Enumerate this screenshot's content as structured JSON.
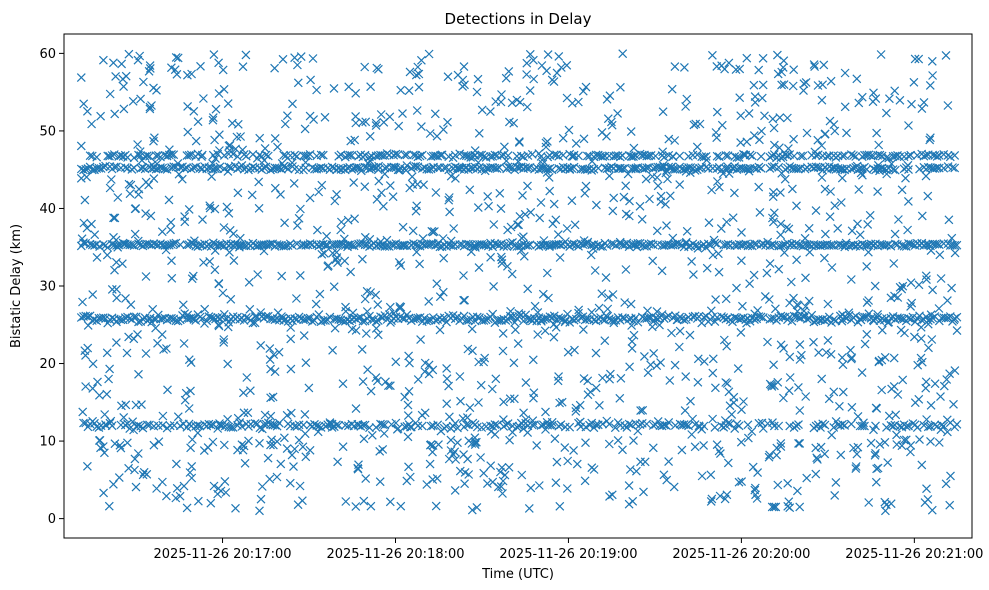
{
  "chart_data": {
    "type": "scatter",
    "title": "Detections in Delay",
    "xlabel": "Time (UTC)",
    "ylabel": "Bistatic Delay (km)",
    "marker": "x",
    "color": "#1f77b4",
    "grid": false,
    "legend": "none",
    "xlim": [
      "2025-11-26 20:16:05",
      "2025-11-26 20:21:20"
    ],
    "ylim": [
      -2.5,
      62.5
    ],
    "x_ticks": [
      {
        "value": "2025-11-26 20:17:00",
        "label": "2025-11-26 20:17:00"
      },
      {
        "value": "2025-11-26 20:18:00",
        "label": "2025-11-26 20:18:00"
      },
      {
        "value": "2025-11-26 20:19:00",
        "label": "2025-11-26 20:19:00"
      },
      {
        "value": "2025-11-26 20:20:00",
        "label": "2025-11-26 20:20:00"
      },
      {
        "value": "2025-11-26 20:21:00",
        "label": "2025-11-26 20:21:00"
      }
    ],
    "y_ticks": [
      {
        "value": 0,
        "label": "0"
      },
      {
        "value": 10,
        "label": "10"
      },
      {
        "value": 20,
        "label": "20"
      },
      {
        "value": 30,
        "label": "30"
      },
      {
        "value": 40,
        "label": "40"
      },
      {
        "value": 50,
        "label": "50"
      },
      {
        "value": 60,
        "label": "60"
      }
    ],
    "time_range": [
      "2025-11-26 20:16:11",
      "2025-11-26 20:21:15"
    ],
    "bands": [
      {
        "delay": 9.5,
        "spread": 0.9,
        "density": 0.12
      },
      {
        "delay": 12.0,
        "spread": 0.35,
        "density": 0.55
      },
      {
        "delay": 25.8,
        "spread": 0.5,
        "density": 0.95
      },
      {
        "delay": 35.3,
        "spread": 0.25,
        "density": 0.9
      },
      {
        "delay": 45.2,
        "spread": 0.25,
        "density": 0.8
      },
      {
        "delay": 46.8,
        "spread": 0.25,
        "density": 0.55
      }
    ],
    "scatter": {
      "count": 1400,
      "y_range": [
        1,
        60
      ]
    }
  }
}
